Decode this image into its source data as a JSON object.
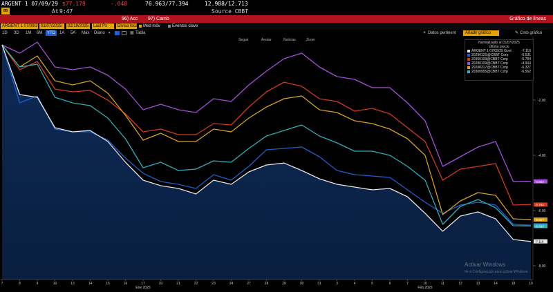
{
  "ticker": {
    "security": "ARGENT 1 07/09/29",
    "price": "$77.178",
    "change": "-.048",
    "bid_ask": "76.963/77.394",
    "yield": "12.988/12.713",
    "badge": "m",
    "time_label": "At",
    "time": "9:47",
    "source": "Source CBBT"
  },
  "toolbar": {
    "acc": "96) Acc",
    "camb": "97) Camb",
    "title": "Gráfico de líneas"
  },
  "controls": {
    "security_field": "ARGENT 1 07/09/29",
    "start_date": "01/07/2025",
    "end_date": "02/19/2025",
    "last_px": "Last Px",
    "local_ccy": "Divisa local",
    "med_mov": "Med móv",
    "eventos": "Eventos clave",
    "colors": {
      "med_mov": "#e8a300",
      "eventos": "#888888"
    }
  },
  "periods": {
    "items": [
      "1D",
      "3D",
      "1M",
      "6M",
      "YTD",
      "1A",
      "5A",
      "Máx",
      "Diario"
    ],
    "active": "YTD",
    "tabla": "Tabla",
    "datos": "Datos pertinent",
    "datos_field": "Añadir gráfico",
    "cmb": "Cmb gráfico"
  },
  "chart_buttons": [
    "Seguir",
    "Anotar",
    "Noticias",
    "Zoom"
  ],
  "legend": {
    "title": "Normalizado al 01/07/2025",
    "subtitle": "Último precio"
  },
  "windows_watermark": {
    "line1": "Activar Windows",
    "line2": "Ve a Configuración para activar Windows."
  },
  "chart_data": {
    "type": "area",
    "x": [
      "7",
      "8",
      "9",
      "10",
      "13",
      "14",
      "15",
      "16",
      "17",
      "20",
      "21",
      "22",
      "23",
      "24",
      "27",
      "28",
      "29",
      "30",
      "31",
      "3",
      "4",
      "5",
      "6",
      "7",
      "10",
      "11",
      "12",
      "13",
      "14",
      "18",
      "19"
    ],
    "x_group_labels": [
      {
        "label": "Ene 2025",
        "at": "17"
      },
      {
        "label": "Feb 2025",
        "at": "10"
      }
    ],
    "ylim": [
      -8.5,
      0.1
    ],
    "y_ticks": [
      "-2.00",
      "-4.00",
      "-6.00",
      "-8.00"
    ],
    "grid": false,
    "legend_position": "top-right",
    "series": [
      {
        "name": "ARGENT 1 07/09/29 Govt",
        "last": "-7.116",
        "color": "#e6e6e6",
        "area": true,
        "values": [
          0,
          -1.8,
          -1.9,
          -3,
          -3.15,
          -3.1,
          -3.5,
          -4.25,
          -4.9,
          -5.1,
          -5.2,
          -5.4,
          -4.9,
          -5.05,
          -4.6,
          -4.35,
          -4.28,
          -4.55,
          -4.85,
          -5.05,
          -5.15,
          -5.25,
          -5.2,
          -5.5,
          -6.1,
          -6.75,
          -6.2,
          -6.05,
          -6.3,
          -7.05,
          -7.12
        ]
      },
      {
        "name": "2029012S@CBBT Corp",
        "last": "-6.531",
        "color": "#1d5fcc",
        "values": [
          0,
          -2.1,
          -1.85,
          -3.05,
          -3.15,
          -3.15,
          -3.45,
          -4.1,
          -4.65,
          -4.95,
          -5.05,
          -5.2,
          -4.7,
          -4.9,
          -4.4,
          -3.8,
          -3.75,
          -3.7,
          -4.05,
          -4.55,
          -4.7,
          -4.75,
          -4.8,
          -5.25,
          -5.7,
          -6.1,
          -5.8,
          -5.7,
          -5.8,
          -6.5,
          -6.53
        ]
      },
      {
        "name": "20300109@CBBT Corp",
        "last": "-5.784",
        "color": "#d33a1e",
        "values": [
          0,
          -0.9,
          -0.6,
          -1.6,
          -1.7,
          -1.65,
          -2.0,
          -2.5,
          -3.15,
          -3.05,
          -3.25,
          -3.25,
          -2.85,
          -2.9,
          -2.25,
          -1.7,
          -1.35,
          -1.5,
          -1.95,
          -2.05,
          -2.4,
          -2.3,
          -2.5,
          -3.0,
          -3.5,
          -4.9,
          -4.5,
          -4.4,
          -4.3,
          -5.8,
          -5.78
        ]
      },
      {
        "name": "20280109@CBBT Corp",
        "last": "-4.944",
        "color": "#a54fd8",
        "values": [
          0,
          -0.3,
          0.1,
          -0.8,
          -0.9,
          -0.8,
          -1.1,
          -1.6,
          -2.35,
          -2.15,
          -2.35,
          -2.45,
          -1.95,
          -2.05,
          -1.45,
          -0.95,
          -0.5,
          -0.3,
          -0.8,
          -1.15,
          -1.25,
          -1.55,
          -1.55,
          -2.1,
          -2.75,
          -4.4,
          -4.05,
          -3.7,
          -3.5,
          -4.95,
          -4.94
        ]
      },
      {
        "name": "20280317@CBBT Corp",
        "last": "-6.327",
        "color": "#d6a21c",
        "values": [
          0,
          -0.8,
          -0.4,
          -1.3,
          -1.45,
          -1.3,
          -1.75,
          -2.55,
          -3.45,
          -3.2,
          -3.5,
          -3.5,
          -3.05,
          -3.15,
          -2.65,
          -2.25,
          -1.95,
          -1.85,
          -2.35,
          -2.45,
          -2.75,
          -2.85,
          -3.05,
          -3.4,
          -4.0,
          -6.15,
          -5.65,
          -5.35,
          -5.45,
          -6.3,
          -6.33
        ]
      },
      {
        "name": "20300955@CBBT Corp",
        "last": "-6.562",
        "color": "#2fb0bc",
        "values": [
          0,
          -0.8,
          -0.7,
          -1.9,
          -2.1,
          -2.2,
          -2.65,
          -3.4,
          -4.45,
          -4.25,
          -4.55,
          -4.5,
          -4.2,
          -4.25,
          -3.75,
          -3.3,
          -3.1,
          -2.9,
          -3.3,
          -3.55,
          -3.85,
          -3.85,
          -4.0,
          -4.4,
          -4.9,
          -6.5,
          -5.85,
          -5.6,
          -5.9,
          -6.55,
          -6.56
        ]
      }
    ]
  }
}
